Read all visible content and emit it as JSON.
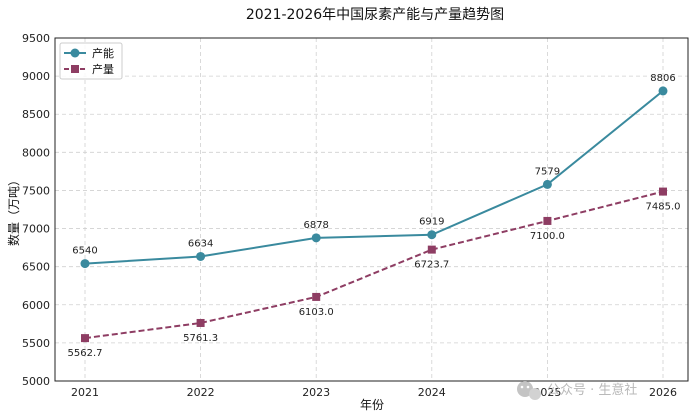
{
  "chart_data": {
    "type": "line",
    "title": "2021-2026年中国尿素产能与产量趋势图",
    "xlabel": "年份",
    "ylabel": "数量（万吨）",
    "categories": [
      "2021",
      "2022",
      "2023",
      "2024",
      "2025",
      "2026"
    ],
    "ylim": [
      5000,
      9500
    ],
    "yticks": [
      "5000",
      "5500",
      "6000",
      "6500",
      "7000",
      "7500",
      "8000",
      "8500",
      "9000",
      "9500"
    ],
    "grid": true,
    "legend_position": "top-left",
    "series": [
      {
        "name": "产能",
        "values": [
          6540,
          6634,
          6878,
          6919,
          7579,
          8806
        ],
        "labels": [
          "6540",
          "6634",
          "6878",
          "6919",
          "7579",
          "8806"
        ],
        "color": "#3a8a9e",
        "style": "solid",
        "marker": "circle"
      },
      {
        "name": "产量",
        "values": [
          5562.7,
          5761.3,
          6103.0,
          6723.7,
          7100.0,
          7485.0
        ],
        "labels": [
          "5562.7",
          "5761.3",
          "6103.0",
          "6723.7",
          "7100.0",
          "7485.0"
        ],
        "color": "#8e3d63",
        "style": "dashed",
        "marker": "square"
      }
    ]
  },
  "watermark": {
    "text": "公众号 · 生意社",
    "icon": "wechat-icon"
  }
}
